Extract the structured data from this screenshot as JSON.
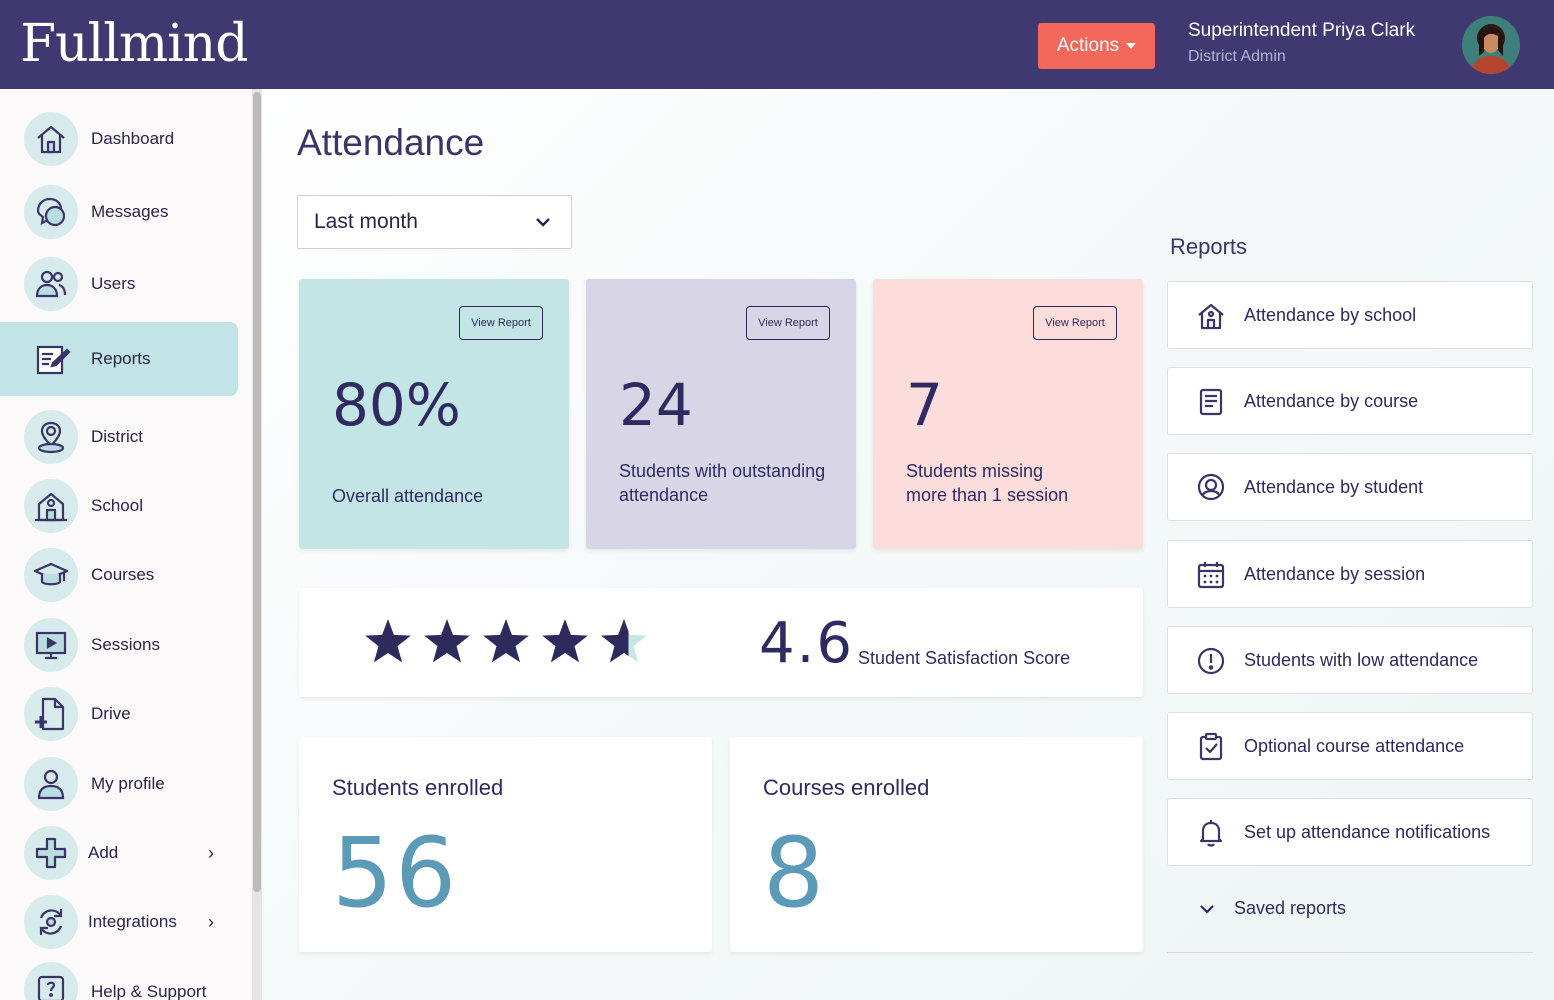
{
  "header": {
    "logo": "Fullmind",
    "actions_label": "Actions",
    "user_name": "Superintendent Priya Clark",
    "user_role": "District Admin"
  },
  "sidebar": {
    "items": [
      {
        "label": "Dashboard",
        "icon": "home-icon"
      },
      {
        "label": "Messages",
        "icon": "messages-icon"
      },
      {
        "label": "Users",
        "icon": "users-icon"
      },
      {
        "label": "Reports",
        "icon": "reports-icon",
        "active": true
      },
      {
        "label": "District",
        "icon": "location-pin-icon"
      },
      {
        "label": "School",
        "icon": "school-icon"
      },
      {
        "label": "Courses",
        "icon": "graduation-cap-icon"
      },
      {
        "label": "Sessions",
        "icon": "monitor-icon"
      },
      {
        "label": "Drive",
        "icon": "file-add-icon"
      },
      {
        "label": "My profile",
        "icon": "profile-icon"
      },
      {
        "label": "Add",
        "icon": "plus-icon"
      },
      {
        "label": "Integrations",
        "icon": "sync-icon"
      },
      {
        "label": "Help & Support",
        "icon": "help-icon"
      }
    ]
  },
  "main": {
    "title": "Attendance",
    "period": "Last month",
    "kpis": [
      {
        "value": "80%",
        "label": "Overall attendance",
        "button": "View Report",
        "color": "#c4e5e6"
      },
      {
        "value": "24",
        "label": "Students with outstanding attendance",
        "button": "View Report",
        "color": "#d8d6e6"
      },
      {
        "value": "7",
        "label": "Students missing more than 1 session",
        "button": "View Report",
        "color": "#fddcdc"
      }
    ],
    "rating": {
      "value": 4.6,
      "max": 5,
      "score_text": "4.6",
      "label": "Student Satisfaction Score"
    },
    "stats": [
      {
        "title": "Students enrolled",
        "value": "56"
      },
      {
        "title": "Courses enrolled",
        "value": "8"
      }
    ]
  },
  "reports": {
    "heading": "Reports",
    "links": [
      {
        "label": "Attendance by school",
        "icon": "school-icon"
      },
      {
        "label": "Attendance by course",
        "icon": "document-icon"
      },
      {
        "label": "Attendance by student",
        "icon": "student-icon"
      },
      {
        "label": "Attendance by session",
        "icon": "calendar-icon"
      },
      {
        "label": "Students with low attendance",
        "icon": "alert-icon"
      },
      {
        "label": "Optional course attendance",
        "icon": "clipboard-check-icon"
      },
      {
        "label": "Set up attendance notifications",
        "icon": "bell-icon"
      }
    ],
    "saved_label": "Saved reports"
  },
  "colors": {
    "header_bg": "#403870",
    "accent": "#f4675b",
    "primary_text": "#302a62",
    "stat_number": "#5b9bb8",
    "active_nav": "#c3e4e6"
  }
}
